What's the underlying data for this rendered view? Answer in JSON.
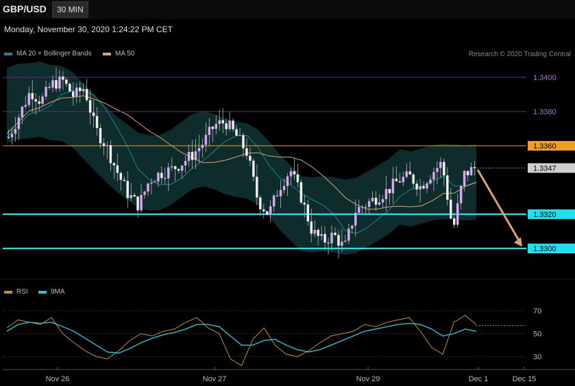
{
  "header": {
    "symbol": "GBP/USD",
    "timeframe": "30 MIN"
  },
  "timestamp": "Monday, November 30, 2020 1:24:22 PM CET",
  "legend": {
    "ma20": {
      "label": "MA 20 + Bollinger Bands",
      "color": "#1b8a8a"
    },
    "ma50": {
      "label": "MA 50",
      "color": "#d9a66b"
    },
    "credit": "Research © 2020 Trading Central"
  },
  "rsi_legend": {
    "rsi": {
      "label": "RSI",
      "color": "#c8902e"
    },
    "ma9": {
      "label": "9MA",
      "color": "#1ec8d8"
    }
  },
  "chart_data": [
    {
      "type": "candlestick",
      "ylim": [
        1.3278,
        1.3415
      ],
      "price_axis_ticks": [
        "1.3400",
        "1.3380",
        "1.3360",
        "1.3347",
        "1.3320",
        "1.3300"
      ],
      "levels": [
        {
          "value": 1.34,
          "label": "1.3400",
          "kind": "resistance-minor"
        },
        {
          "value": 1.338,
          "label": "1.3380",
          "kind": "resistance-minor"
        },
        {
          "value": 1.336,
          "label": "1.3360",
          "kind": "resistance"
        },
        {
          "value": 1.332,
          "label": "1.3320",
          "kind": "support"
        },
        {
          "value": 1.33,
          "label": "1.3300",
          "kind": "support"
        }
      ],
      "last_price": {
        "value": 1.3347,
        "label": "1.3347"
      },
      "x_labels": [
        "Nov 26",
        "Nov 27",
        "Nov 29",
        "Dec 1",
        "Dec 15"
      ],
      "forecast_arrow": {
        "from": 1.3346,
        "to": 1.3301
      },
      "colors": {
        "up": "#d8a8f0",
        "down": "#f0f0f0",
        "band": "#0f2e2e",
        "ma20": "#1b8a8a",
        "ma50": "#d9a66b",
        "support": "#1ee0f0",
        "resistance": "#f0a020",
        "minor": "#6a2a8a",
        "arrow": "#e0a36a"
      },
      "close_path": [
        1.3365,
        1.3378,
        1.3392,
        1.3386,
        1.3396,
        1.3398,
        1.3389,
        1.3394,
        1.337,
        1.336,
        1.3345,
        1.3332,
        1.3325,
        1.334,
        1.3344,
        1.3346,
        1.335,
        1.3355,
        1.3362,
        1.3372,
        1.3374,
        1.3366,
        1.3356,
        1.3328,
        1.332,
        1.3336,
        1.3346,
        1.333,
        1.331,
        1.3304,
        1.3308,
        1.33,
        1.3322,
        1.3326,
        1.333,
        1.3334,
        1.334,
        1.3342,
        1.3336,
        1.3344,
        1.335,
        1.331,
        1.3343,
        1.3347
      ]
    },
    {
      "type": "line",
      "title": "RSI",
      "ylim": [
        20,
        75
      ],
      "y_ticks": [
        "70",
        "50",
        "30"
      ],
      "series": [
        {
          "name": "RSI",
          "values": [
            55,
            62,
            60,
            58,
            64,
            50,
            42,
            35,
            30,
            28,
            35,
            44,
            50,
            48,
            52,
            54,
            60,
            64,
            55,
            50,
            28,
            22,
            45,
            55,
            40,
            32,
            30,
            35,
            42,
            48,
            50,
            52,
            58,
            56,
            60,
            62,
            64,
            52,
            38,
            32,
            60,
            66,
            58
          ]
        },
        {
          "name": "9MA",
          "values": [
            52,
            58,
            60,
            59,
            60,
            56,
            52,
            46,
            40,
            34,
            33,
            37,
            42,
            46,
            49,
            51,
            54,
            58,
            58,
            56,
            48,
            40,
            40,
            44,
            45,
            40,
            36,
            34,
            36,
            40,
            44,
            48,
            52,
            54,
            56,
            58,
            59,
            58,
            54,
            48,
            50,
            54,
            52
          ]
        }
      ]
    }
  ]
}
